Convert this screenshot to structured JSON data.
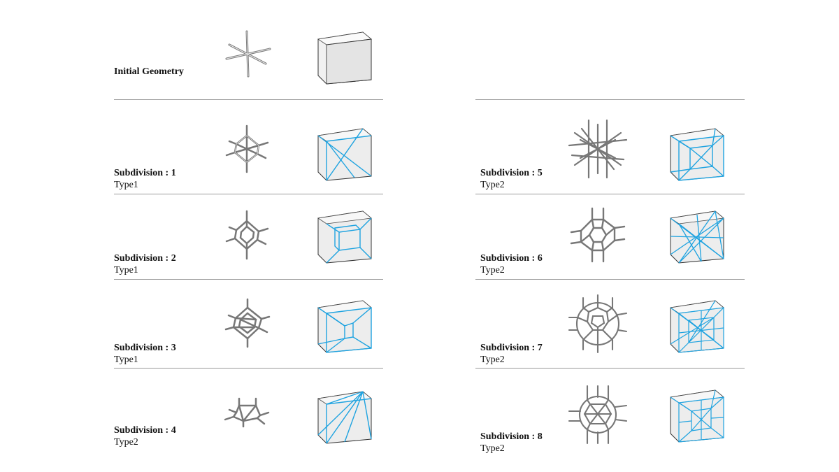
{
  "initial": {
    "title": "Initial Geometry"
  },
  "rows_left": [
    {
      "title": "Subdivision : 1",
      "type": "Type1"
    },
    {
      "title": "Subdivision : 2",
      "type": "Type1"
    },
    {
      "title": "Subdivision : 3",
      "type": "Type1"
    },
    {
      "title": "Subdivision : 4",
      "type": "Type2"
    }
  ],
  "rows_right": [
    {
      "title": "Subdivision : 5",
      "type": "Type2"
    },
    {
      "title": "Subdivision : 6",
      "type": "Type2"
    },
    {
      "title": "Subdivision : 7",
      "type": "Type2"
    },
    {
      "title": "Subdivision : 8",
      "type": "Type2"
    }
  ],
  "colors": {
    "accent_line": "#1fa3e0",
    "rule": "#9a9a9a",
    "strut": "#7a7a7a",
    "cube_face": "#e6e6e6"
  },
  "icons": [
    "node-strut-icon",
    "cube-subdivision-icon"
  ]
}
